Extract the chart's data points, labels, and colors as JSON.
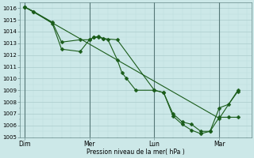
{
  "xlabel": "Pression niveau de la mer( hPa )",
  "background_color": "#cce8e8",
  "grid_major_color": "#aacccc",
  "grid_minor_color": "#bbdddd",
  "vline_color": "#557777",
  "line_color": "#1a5c1a",
  "ylim": [
    1005,
    1016.5
  ],
  "yticks": [
    1005,
    1006,
    1007,
    1008,
    1009,
    1010,
    1011,
    1012,
    1013,
    1014,
    1015,
    1016
  ],
  "xtick_labels": [
    "Dim",
    "Mer",
    "Lun",
    "Mar"
  ],
  "xtick_positions": [
    0,
    56,
    112,
    168
  ],
  "xlim": [
    -4,
    196
  ],
  "vlines_x": [
    0,
    56,
    112,
    168
  ],
  "line1_x": [
    0,
    8,
    24,
    32,
    48,
    56,
    60,
    64,
    68,
    72,
    80,
    84,
    88,
    96,
    112,
    120,
    128,
    136,
    144,
    152,
    160,
    168,
    176,
    184
  ],
  "line1_y": [
    1016.1,
    1015.7,
    1014.8,
    1013.1,
    1013.3,
    1013.3,
    1013.5,
    1013.6,
    1013.4,
    1013.3,
    1011.6,
    1010.5,
    1010.0,
    1009.0,
    1009.0,
    1008.8,
    1007.0,
    1006.3,
    1006.1,
    1005.5,
    1005.5,
    1006.7,
    1006.7,
    1006.7
  ],
  "line2_x": [
    0,
    8,
    24,
    32,
    48,
    56,
    60,
    64,
    68,
    80,
    112,
    120,
    128,
    136,
    144,
    152,
    160,
    168,
    176,
    184
  ],
  "line2_y": [
    1016.1,
    1015.7,
    1014.7,
    1012.5,
    1012.3,
    1013.3,
    1013.5,
    1013.5,
    1013.4,
    1013.3,
    1009.0,
    1008.8,
    1006.8,
    1006.1,
    1005.6,
    1005.3,
    1005.5,
    1007.5,
    1007.8,
    1008.9
  ],
  "line3_x": [
    0,
    168,
    184
  ],
  "line3_y": [
    1016.1,
    1006.6,
    1009.0
  ],
  "marker_size": 2.5,
  "linewidth": 0.8
}
